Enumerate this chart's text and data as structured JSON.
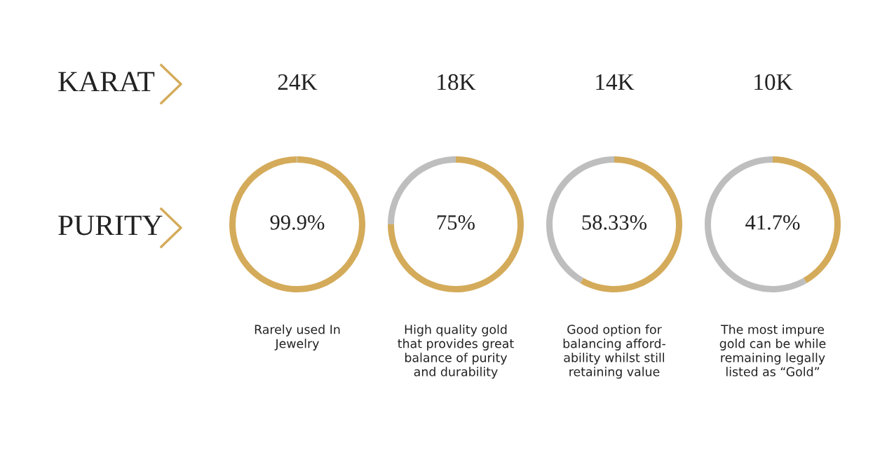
{
  "chart_data": [
    {
      "type": "other",
      "annotations": [
        "KARAT",
        "PURITY"
      ]
    },
    {
      "type": "donut",
      "title": "24K",
      "categories": [
        null,
        null
      ],
      "values": [
        99.9,
        0.1
      ],
      "colors": [
        "#d4ab5a",
        "#bebebe"
      ],
      "annotations": [
        "99.9%",
        "Rarely used In\nJewelry"
      ]
    },
    {
      "type": "donut",
      "title": "18K",
      "categories": [
        null,
        null
      ],
      "values": [
        75,
        25
      ],
      "colors": [
        "#d4ab5a",
        "#bebebe"
      ],
      "annotations": [
        "75%",
        "High quality gold\nthat provides great\nbalance of purity\nand durability"
      ]
    },
    {
      "type": "donut",
      "title": "14K",
      "categories": [
        null,
        null
      ],
      "values": [
        58.33,
        41.67
      ],
      "colors": [
        "#d4ab5a",
        "#bebebe"
      ],
      "annotations": [
        "58.33%",
        "Good option for\nbalancing afford-\nability whilst still\nretaining value"
      ]
    },
    {
      "type": "donut",
      "title": "10K",
      "categories": [
        null,
        null
      ],
      "values": [
        41.7,
        58.3
      ],
      "colors": [
        "#d4ab5a",
        "#bebebe"
      ],
      "annotations": [
        "41.7%",
        "The most impure\ngold can be while\nremaining legally\nlisted as “Gold”"
      ]
    }
  ]
}
